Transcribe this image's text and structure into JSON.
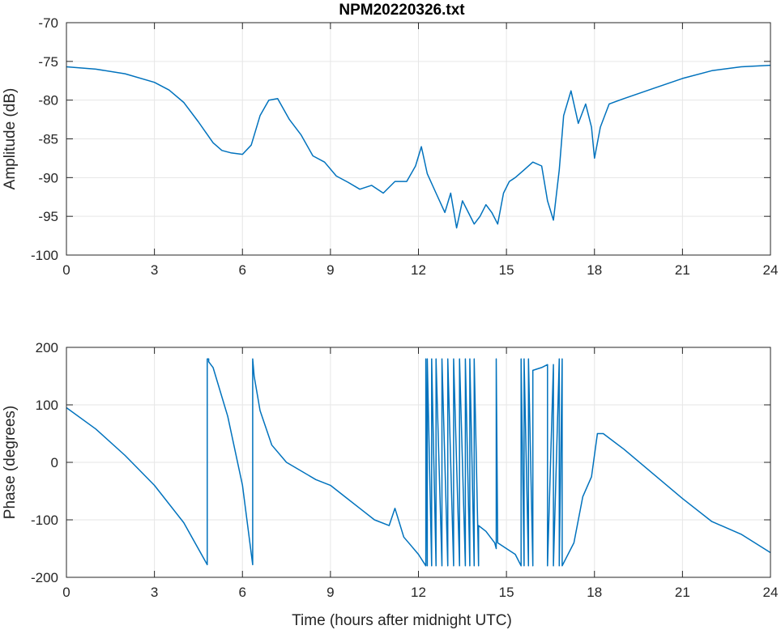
{
  "figure_title": "NPM20220326.txt",
  "xlabel": "Time (hours after midnight UTC)",
  "line_color": "#0072bd",
  "chart_data": [
    {
      "type": "line",
      "title": "NPM20220326.txt",
      "xlabel": "",
      "ylabel": "Amplitude (dB)",
      "xlim": [
        0,
        24
      ],
      "ylim": [
        -100,
        -70
      ],
      "xticks": [
        "0",
        "3",
        "6",
        "9",
        "12",
        "15",
        "18",
        "21",
        "24"
      ],
      "yticks": [
        "-70",
        "-75",
        "-80",
        "-85",
        "-90",
        "-95",
        "-100"
      ],
      "grid": true,
      "series": [
        {
          "color": "#0072bd",
          "x": [
            0,
            1,
            2,
            3,
            3.5,
            4,
            4.5,
            5,
            5.3,
            5.6,
            6.0,
            6.3,
            6.6,
            6.9,
            7.2,
            7.6,
            8.0,
            8.4,
            8.8,
            9.2,
            9.6,
            10.0,
            10.4,
            10.8,
            11.2,
            11.6,
            11.9,
            12.1,
            12.3,
            12.6,
            12.9,
            13.1,
            13.3,
            13.5,
            13.7,
            13.9,
            14.1,
            14.3,
            14.5,
            14.7,
            14.9,
            15.1,
            15.3,
            15.6,
            15.9,
            16.2,
            16.4,
            16.6,
            16.8,
            16.95,
            17.2,
            17.45,
            17.7,
            17.9,
            18.0,
            18.2,
            18.5,
            19,
            20,
            21,
            22,
            23,
            24
          ],
          "y": [
            -75.7,
            -76.0,
            -76.6,
            -77.7,
            -78.7,
            -80.3,
            -82.8,
            -85.5,
            -86.5,
            -86.8,
            -87.0,
            -85.8,
            -82.0,
            -80.0,
            -79.8,
            -82.5,
            -84.5,
            -87.2,
            -88.0,
            -89.8,
            -90.6,
            -91.5,
            -91.0,
            -92.0,
            -90.5,
            -90.5,
            -88.5,
            -86.0,
            -89.5,
            -92.0,
            -94.5,
            -92.0,
            -96.5,
            -93.0,
            -94.5,
            -96.0,
            -95.0,
            -93.5,
            -94.5,
            -96.0,
            -92.0,
            -90.5,
            -90.0,
            -89.0,
            -88.0,
            -88.5,
            -93.0,
            -95.5,
            -89.0,
            -82.0,
            -78.8,
            -83.0,
            -80.5,
            -83.5,
            -87.5,
            -83.5,
            -80.5,
            -79.8,
            -78.5,
            -77.2,
            -76.2,
            -75.7,
            -75.5
          ]
        }
      ]
    },
    {
      "type": "line",
      "title": "",
      "xlabel": "Time (hours after midnight UTC)",
      "ylabel": "Phase (degrees)",
      "xlim": [
        0,
        24
      ],
      "ylim": [
        -200,
        200
      ],
      "xticks": [
        "0",
        "3",
        "6",
        "9",
        "12",
        "15",
        "18",
        "21",
        "24"
      ],
      "yticks": [
        "200",
        "100",
        "0",
        "-100",
        "-200"
      ],
      "grid": true,
      "series": [
        {
          "color": "#0072bd",
          "x": [
            0,
            1,
            2,
            3,
            4,
            4.8,
            4.8,
            4.85,
            4.85,
            5.0,
            5.5,
            6.0,
            6.35,
            6.35,
            6.4,
            6.6,
            7.0,
            7.5,
            8.0,
            8.5,
            9.0,
            9.5,
            10.0,
            10.5,
            11.0,
            11.2,
            11.5,
            12.0,
            12.25,
            12.25,
            12.3,
            12.3,
            12.45,
            12.45,
            12.6,
            12.6,
            12.8,
            12.8,
            13.0,
            13.0,
            13.2,
            13.2,
            13.4,
            13.4,
            13.6,
            13.6,
            13.75,
            13.75,
            13.9,
            13.9,
            14.05,
            14.05,
            14.3,
            14.6,
            14.65,
            14.65,
            14.7,
            15.0,
            15.3,
            15.5,
            15.5,
            15.6,
            15.6,
            15.75,
            15.75,
            15.9,
            15.9,
            16.2,
            16.4,
            16.4,
            16.6,
            16.6,
            16.8,
            16.8,
            16.9,
            16.9,
            17.0,
            17.3,
            17.6,
            17.9,
            18.1,
            18.3,
            19,
            20,
            21,
            22,
            23,
            24
          ],
          "y": [
            95,
            58,
            12,
            -40,
            -105,
            -178,
            180,
            180,
            175,
            165,
            80,
            -40,
            -178,
            180,
            150,
            90,
            30,
            0,
            -15,
            -30,
            -40,
            -60,
            -80,
            -100,
            -110,
            -80,
            -130,
            -160,
            -180,
            180,
            -180,
            180,
            -180,
            180,
            -180,
            180,
            -180,
            180,
            -180,
            180,
            -180,
            180,
            -180,
            180,
            -180,
            180,
            -180,
            180,
            -180,
            180,
            -180,
            -110,
            -120,
            -140,
            -150,
            180,
            -140,
            -150,
            -160,
            -180,
            180,
            -180,
            180,
            -180,
            180,
            -180,
            160,
            165,
            170,
            -180,
            170,
            -180,
            180,
            -180,
            180,
            -180,
            -170,
            -140,
            -60,
            -25,
            50,
            50,
            23,
            -20,
            -63,
            -103,
            -125,
            -157
          ]
        }
      ]
    }
  ]
}
